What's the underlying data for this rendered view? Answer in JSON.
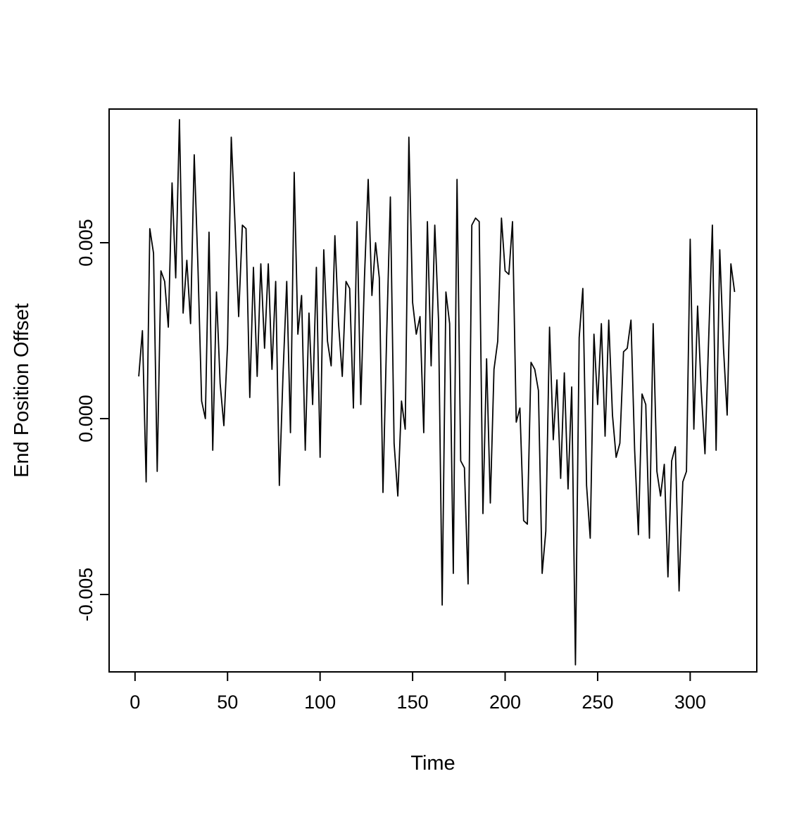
{
  "chart_data": {
    "type": "line",
    "title": "",
    "xlabel": "Time",
    "ylabel": "End Position Offset",
    "legend": "none",
    "grid": false,
    "line_color": "#000000",
    "background_color": "#ffffff",
    "x_ticks": [
      0,
      50,
      100,
      150,
      200,
      250,
      300
    ],
    "y_ticks": [
      -0.005,
      0.0,
      0.005
    ],
    "y_tick_decimals": 3,
    "xlim": [
      -14,
      336
    ],
    "ylim": [
      -0.0072,
      0.0088
    ],
    "x_start": 2,
    "x_step": 2,
    "values": [
      0.0012,
      0.0025,
      -0.0018,
      0.0054,
      0.0047,
      -0.0015,
      0.0042,
      0.0039,
      0.0026,
      0.0067,
      0.004,
      0.0085,
      0.003,
      0.0045,
      0.0027,
      0.0075,
      0.0043,
      0.0005,
      0.0,
      0.0053,
      -0.0009,
      0.0036,
      0.001,
      -0.0002,
      0.0021,
      0.008,
      0.0056,
      0.0029,
      0.0055,
      0.0054,
      0.0006,
      0.0043,
      0.0012,
      0.0044,
      0.002,
      0.0044,
      0.0014,
      0.0039,
      -0.0019,
      0.0013,
      0.0039,
      -0.0004,
      0.007,
      0.0024,
      0.0035,
      -0.0009,
      0.003,
      0.0004,
      0.0043,
      -0.0011,
      0.0048,
      0.0022,
      0.0015,
      0.0052,
      0.0027,
      0.0012,
      0.0039,
      0.0037,
      0.0003,
      0.0056,
      0.0004,
      0.004,
      0.0068,
      0.0035,
      0.005,
      0.004,
      -0.0021,
      0.0024,
      0.0063,
      -0.0007,
      -0.0022,
      0.0005,
      -0.0003,
      0.008,
      0.0033,
      0.0024,
      0.0029,
      -0.0004,
      0.0056,
      0.0015,
      0.0055,
      0.0028,
      -0.0053,
      0.0036,
      0.0027,
      -0.0044,
      0.0068,
      -0.0012,
      -0.0014,
      -0.0047,
      0.0055,
      0.0057,
      0.0056,
      -0.0027,
      0.0017,
      -0.0024,
      0.0014,
      0.0022,
      0.0057,
      0.0042,
      0.0041,
      0.0056,
      -0.0001,
      0.0003,
      -0.0029,
      -0.003,
      0.0016,
      0.0014,
      0.0008,
      -0.0044,
      -0.0032,
      0.0026,
      -0.0006,
      0.0011,
      -0.0017,
      0.0013,
      -0.002,
      0.0009,
      -0.007,
      0.0023,
      0.0037,
      -0.0019,
      -0.0034,
      0.0024,
      0.0004,
      0.0027,
      -0.0005,
      0.0028,
      0.0001,
      -0.0011,
      -0.0007,
      0.0019,
      0.002,
      0.0028,
      -0.0009,
      -0.0033,
      0.0007,
      0.0004,
      -0.0034,
      0.0027,
      -0.0015,
      -0.0022,
      -0.0013,
      -0.0045,
      -0.0012,
      -0.0008,
      -0.0049,
      -0.0018,
      -0.0015,
      0.0051,
      -0.0003,
      0.0032,
      0.0008,
      -0.001,
      0.0023,
      0.0055,
      -0.0009,
      0.0048,
      0.002,
      0.0001,
      0.0044,
      0.0036
    ]
  }
}
